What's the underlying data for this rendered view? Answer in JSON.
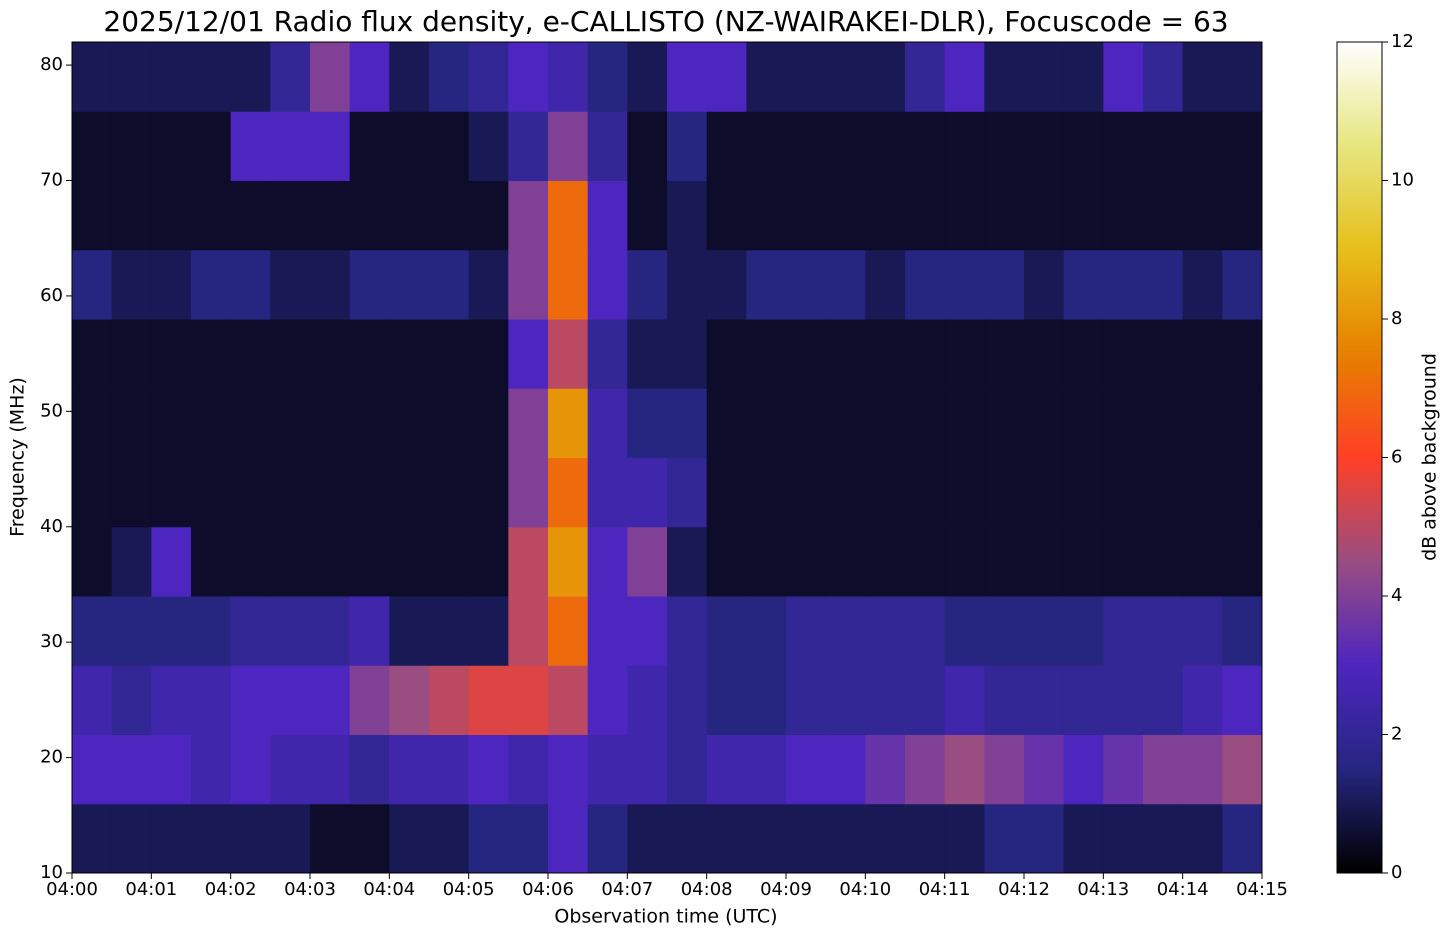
{
  "chart_data": {
    "type": "heatmap",
    "title": "2025/12/01 Radio flux density, e-CALLISTO (NZ-WAIRAKEI-DLR), Focuscode = 63",
    "x_label": "Observation time (UTC)",
    "y_label": "Frequency (MHz)",
    "xlim": [
      0,
      15
    ],
    "xticks": [
      {
        "value": 0,
        "label": "04:00"
      },
      {
        "value": 1,
        "label": "04:01"
      },
      {
        "value": 2,
        "label": "04:02"
      },
      {
        "value": 3,
        "label": "04:03"
      },
      {
        "value": 4,
        "label": "04:04"
      },
      {
        "value": 5,
        "label": "04:05"
      },
      {
        "value": 6,
        "label": "04:06"
      },
      {
        "value": 7,
        "label": "04:07"
      },
      {
        "value": 8,
        "label": "04:08"
      },
      {
        "value": 9,
        "label": "04:09"
      },
      {
        "value": 10,
        "label": "04:10"
      },
      {
        "value": 11,
        "label": "04:11"
      },
      {
        "value": 12,
        "label": "04:12"
      },
      {
        "value": 13,
        "label": "04:13"
      },
      {
        "value": 14,
        "label": "04:14"
      },
      {
        "value": 15,
        "label": "04:15"
      }
    ],
    "ylim": [
      10,
      82
    ],
    "yticks": [
      10,
      20,
      30,
      40,
      50,
      60,
      70,
      80
    ],
    "colorbar_label": "dB above background",
    "clim": [
      0,
      12
    ],
    "cticks": [
      0,
      2,
      4,
      6,
      8,
      10,
      12
    ],
    "colormap": [
      "#000000",
      "#262680",
      "#4d26bf",
      "#994d80",
      "#ff4026",
      "#e68000",
      "#e6bf1a",
      "#e6e680",
      "#ffffff"
    ],
    "z": [
      [
        1,
        1,
        1,
        1,
        1,
        1,
        0.5,
        0.5,
        1,
        1,
        1.5,
        1.5,
        3,
        1.5,
        1,
        1,
        1,
        1,
        1,
        1,
        1,
        1,
        1,
        1.5,
        1.5,
        1,
        1,
        1,
        1,
        1.5
      ],
      [
        3,
        3,
        3,
        2.5,
        3,
        2.5,
        2.5,
        2,
        2.5,
        2.5,
        3,
        2.5,
        3,
        2.5,
        2.5,
        2,
        2.5,
        2.5,
        3,
        3,
        3.5,
        4,
        4.5,
        4,
        3.5,
        3,
        3.5,
        4,
        4,
        4.5
      ],
      [
        2.5,
        2,
        2.5,
        2.5,
        3,
        3,
        3,
        4,
        4.5,
        5,
        5.5,
        5.5,
        5,
        3,
        2.5,
        2,
        1.5,
        1.5,
        2,
        2,
        2,
        2,
        2.5,
        2,
        2,
        2,
        2,
        2,
        2.5,
        3
      ],
      [
        1.5,
        1.5,
        1.5,
        1.5,
        2,
        2,
        2,
        2.5,
        1,
        1,
        1,
        5,
        7,
        3,
        3,
        2,
        1.5,
        1.5,
        2,
        2,
        2,
        2,
        1.5,
        1.5,
        1.5,
        1.5,
        2,
        2,
        2,
        1.5
      ],
      [
        0.5,
        1,
        3,
        0.5,
        0.5,
        0.5,
        0.5,
        0.5,
        0.5,
        0.5,
        0.5,
        5,
        8,
        3,
        4,
        1,
        0.5,
        0.5,
        0.5,
        0.5,
        0.5,
        0.5,
        0.5,
        0.5,
        0.5,
        0.5,
        0.5,
        0.5,
        0.5,
        0.5
      ],
      [
        0.5,
        0.5,
        0.5,
        0.5,
        0.5,
        0.5,
        0.5,
        0.5,
        0.5,
        0.5,
        0.5,
        4,
        7,
        2.5,
        2.5,
        2,
        0.5,
        0.5,
        0.5,
        0.5,
        0.5,
        0.5,
        0.5,
        0.5,
        0.5,
        0.5,
        0.5,
        0.5,
        0.5,
        0.5
      ],
      [
        0.5,
        0.5,
        0.5,
        0.5,
        0.5,
        0.5,
        0.5,
        0.5,
        0.5,
        0.5,
        0.5,
        4,
        8,
        2.5,
        1.5,
        1.5,
        0.5,
        0.5,
        0.5,
        0.5,
        0.5,
        0.5,
        0.5,
        0.5,
        0.5,
        0.5,
        0.5,
        0.5,
        0.5,
        0.5
      ],
      [
        0.5,
        0.5,
        0.5,
        0.5,
        0.5,
        0.5,
        0.5,
        0.5,
        0.5,
        0.5,
        0.5,
        3,
        5,
        2,
        1,
        1,
        0.5,
        0.5,
        0.5,
        0.5,
        0.5,
        0.5,
        0.5,
        0.5,
        0.5,
        0.5,
        0.5,
        0.5,
        0.5,
        0.5
      ],
      [
        1.5,
        1,
        1,
        1.5,
        1.5,
        1,
        1,
        1.5,
        1.5,
        1.5,
        1,
        4,
        7,
        3,
        1.5,
        1,
        1,
        1.5,
        1.5,
        1.5,
        1,
        1.5,
        1.5,
        1.5,
        1,
        1.5,
        1.5,
        1.5,
        1,
        1.5
      ],
      [
        0.5,
        0.5,
        0.5,
        0.5,
        0.5,
        0.5,
        0.5,
        0.5,
        0.5,
        0.5,
        0.5,
        4,
        7,
        3,
        0.5,
        1,
        0.5,
        0.5,
        0.5,
        0.5,
        0.5,
        0.5,
        0.5,
        0.5,
        0.5,
        0.5,
        0.5,
        0.5,
        0.5,
        0.5
      ],
      [
        0.5,
        0.5,
        0.5,
        0.5,
        3,
        3,
        3,
        0.5,
        0.5,
        0.5,
        1,
        2,
        4,
        2,
        0.5,
        1.5,
        0.5,
        0.5,
        0.5,
        0.5,
        0.5,
        0.5,
        0.5,
        0.5,
        0.5,
        0.5,
        0.5,
        0.5,
        0.5,
        0.5
      ],
      [
        1,
        1,
        1,
        1,
        1,
        2,
        4,
        3,
        1,
        1.5,
        2,
        3,
        2.5,
        1.5,
        1,
        3,
        3,
        1,
        1,
        1,
        1,
        2,
        3,
        1,
        1,
        1,
        3,
        2,
        1,
        1
      ]
    ]
  }
}
